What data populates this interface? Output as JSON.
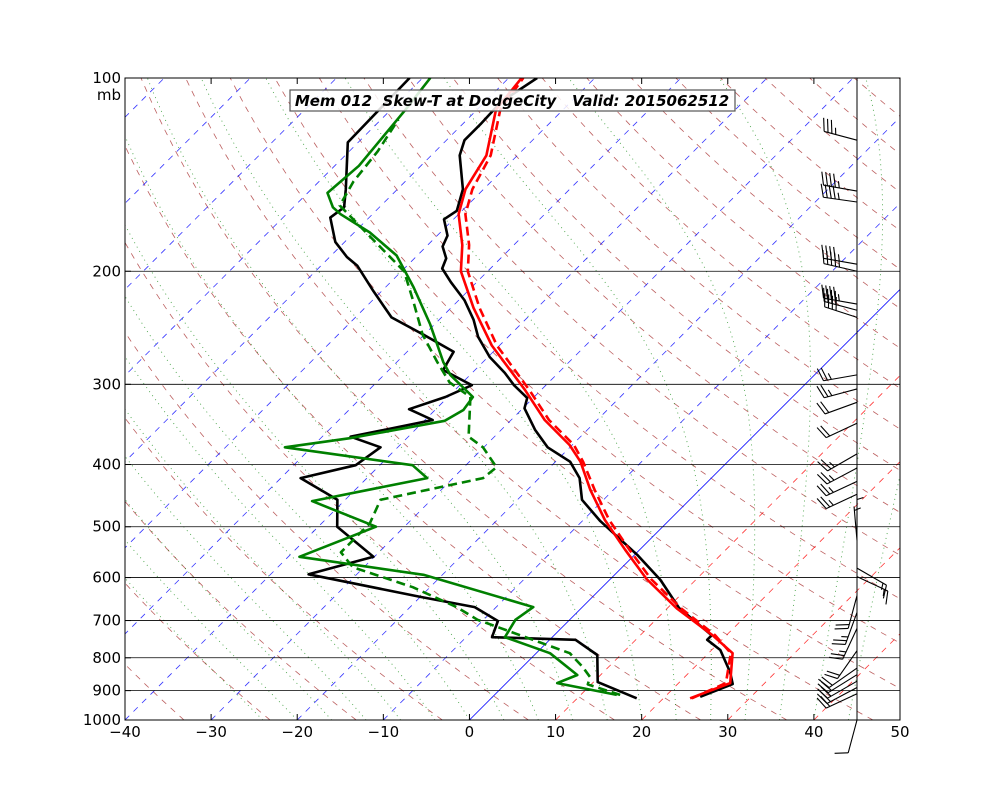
{
  "chart_data": {
    "type": "line",
    "subtype": "skew-t log-p",
    "title": "Mem 012  Skew-T at DodgeCity   Valid: 2015062512",
    "xlabel": "",
    "ylabel": "",
    "y_unit": "mb",
    "xlim": [
      -40,
      50
    ],
    "ylim": [
      1000,
      100
    ],
    "x_ticks": [
      "−40",
      "−30",
      "−20",
      "−10",
      "0",
      "10",
      "20",
      "30",
      "40",
      "50"
    ],
    "x_tick_values": [
      -40,
      -30,
      -20,
      -10,
      0,
      10,
      20,
      30,
      40,
      50
    ],
    "y_ticks": [
      "100",
      "200",
      "300",
      "400",
      "500",
      "600",
      "700",
      "800",
      "900",
      "1000"
    ],
    "y_tick_values": [
      100,
      200,
      300,
      400,
      500,
      600,
      700,
      800,
      900,
      1000
    ],
    "grid": {
      "isobars": true,
      "isotherm_step": 10,
      "dry_adiabats": true,
      "moist_adiabats": true
    },
    "colors": {
      "isotherm_neg": "#0000ff",
      "isotherm_pos": "#ff0000",
      "isotherm_zero": "#0000ff",
      "dry_adiabat": "#a52a2a",
      "moist_adiabat": "#008000"
    },
    "series": [
      {
        "color": "#000000",
        "dashed": false,
        "points": [
          [
            920,
            24.1
          ],
          [
            879,
            26.4
          ],
          [
            842,
            24.7
          ],
          [
            778,
            21.0
          ],
          [
            750,
            18.3
          ],
          [
            738,
            18.3
          ],
          [
            670,
            11.4
          ],
          [
            605,
            5.9
          ],
          [
            553,
            0.3
          ],
          [
            490,
            -7.9
          ],
          [
            454,
            -12.5
          ],
          [
            420,
            -15.3
          ],
          [
            396,
            -18.3
          ],
          [
            376,
            -22.6
          ],
          [
            353,
            -26.1
          ],
          [
            327,
            -29.8
          ],
          [
            315,
            -30.7
          ],
          [
            301,
            -33.7
          ],
          [
            288,
            -36.2
          ],
          [
            272,
            -39.8
          ],
          [
            253,
            -43.5
          ],
          [
            238,
            -46.0
          ],
          [
            222,
            -49.3
          ],
          [
            208,
            -53.0
          ],
          [
            198,
            -55.6
          ],
          [
            191,
            -56.3
          ],
          [
            183,
            -58.1
          ],
          [
            176,
            -58.8
          ],
          [
            166,
            -61.1
          ],
          [
            161,
            -60.6
          ],
          [
            149,
            -62.4
          ],
          [
            132,
            -66.7
          ],
          [
            125,
            -67.9
          ],
          [
            118,
            -67.9
          ],
          [
            109,
            -68.1
          ],
          [
            100,
            -66.7
          ]
        ]
      },
      {
        "color": "#ff0000",
        "dashed": false,
        "points": [
          [
            925,
            23.1
          ],
          [
            876,
            26.0
          ],
          [
            787,
            22.8
          ],
          [
            738,
            18.4
          ],
          [
            670,
            11.1
          ],
          [
            603,
            4.2
          ],
          [
            543,
            -1.7
          ],
          [
            488,
            -7.5
          ],
          [
            438,
            -12.7
          ],
          [
            396,
            -17.1
          ],
          [
            373,
            -20.3
          ],
          [
            341,
            -26.1
          ],
          [
            306,
            -31.9
          ],
          [
            261,
            -40.9
          ],
          [
            228,
            -47.4
          ],
          [
            200,
            -53.1
          ],
          [
            182,
            -56.0
          ],
          [
            163,
            -60.0
          ],
          [
            149,
            -62.1
          ],
          [
            132,
            -63.6
          ],
          [
            112,
            -67.8
          ],
          [
            100,
            -68.5
          ]
        ]
      },
      {
        "color": "#ff0000",
        "dashed": true,
        "points": [
          [
            925,
            23.3
          ],
          [
            876,
            25.5
          ],
          [
            787,
            22.6
          ],
          [
            738,
            18.7
          ],
          [
            670,
            11.6
          ],
          [
            603,
            4.7
          ],
          [
            543,
            -1.2
          ],
          [
            488,
            -7.0
          ],
          [
            438,
            -12.2
          ],
          [
            396,
            -16.8
          ],
          [
            373,
            -19.8
          ],
          [
            341,
            -25.6
          ],
          [
            306,
            -31.4
          ],
          [
            261,
            -40.3
          ],
          [
            228,
            -46.7
          ],
          [
            200,
            -52.3
          ],
          [
            182,
            -55.2
          ],
          [
            163,
            -59.2
          ],
          [
            149,
            -61.3
          ],
          [
            132,
            -63.1
          ],
          [
            112,
            -67.3
          ],
          [
            100,
            -68.3
          ]
        ]
      },
      {
        "color": "#000000",
        "dashed": false,
        "points": [
          [
            925,
            16.9
          ],
          [
            873,
            10.5
          ],
          [
            792,
            7.3
          ],
          [
            750,
            3.0
          ],
          [
            743,
            -7.0
          ],
          [
            701,
            -8.2
          ],
          [
            667,
            -12.5
          ],
          [
            643,
            -20.0
          ],
          [
            593,
            -35.6
          ],
          [
            557,
            -30.1
          ],
          [
            500,
            -37.8
          ],
          [
            454,
            -40.9
          ],
          [
            420,
            -47.7
          ],
          [
            401,
            -42.8
          ],
          [
            376,
            -42.0
          ],
          [
            362,
            -46.7
          ],
          [
            341,
            -39.1
          ],
          [
            328,
            -43.1
          ],
          [
            314,
            -40.3
          ],
          [
            301,
            -38.6
          ],
          [
            285,
            -43.7
          ],
          [
            267,
            -44.6
          ],
          [
            251,
            -50.1
          ],
          [
            236,
            -55.8
          ],
          [
            215,
            -60.9
          ],
          [
            196,
            -65.8
          ],
          [
            190,
            -68.0
          ],
          [
            180,
            -71.1
          ],
          [
            165,
            -74.5
          ],
          [
            159,
            -74.1
          ],
          [
            149,
            -76.0
          ],
          [
            126,
            -81.2
          ],
          [
            100,
            -81.5
          ]
        ]
      },
      {
        "color": "#008000",
        "dashed": false,
        "points": [
          [
            914,
            14.2
          ],
          [
            876,
            5.9
          ],
          [
            851,
            7.3
          ],
          [
            787,
            1.6
          ],
          [
            743,
            -5.5
          ],
          [
            698,
            -6.3
          ],
          [
            667,
            -5.7
          ],
          [
            594,
            -22.2
          ],
          [
            557,
            -38.7
          ],
          [
            500,
            -33.3
          ],
          [
            456,
            -43.7
          ],
          [
            420,
            -33.0
          ],
          [
            401,
            -36.2
          ],
          [
            376,
            -53.1
          ],
          [
            364,
            -46.6
          ],
          [
            342,
            -37.6
          ],
          [
            329,
            -36.7
          ],
          [
            314,
            -37.1
          ],
          [
            290,
            -42.3
          ],
          [
            277,
            -44.6
          ],
          [
            242,
            -50.5
          ],
          [
            212,
            -56.7
          ],
          [
            189,
            -62.4
          ],
          [
            174,
            -68.2
          ],
          [
            163,
            -73.7
          ],
          [
            159,
            -75.4
          ],
          [
            151,
            -77.7
          ],
          [
            137,
            -77.2
          ],
          [
            112,
            -78.3
          ],
          [
            100,
            -79.1
          ]
        ]
      },
      {
        "color": "#008000",
        "dashed": true,
        "points": [
          [
            914,
            14.6
          ],
          [
            880,
            9.6
          ],
          [
            857,
            9.0
          ],
          [
            827,
            7.0
          ],
          [
            787,
            3.9
          ],
          [
            698,
            -10.7
          ],
          [
            667,
            -14.6
          ],
          [
            621,
            -22.0
          ],
          [
            578,
            -31.3
          ],
          [
            548,
            -34.4
          ],
          [
            494,
            -34.4
          ],
          [
            454,
            -35.9
          ],
          [
            420,
            -26.5
          ],
          [
            404,
            -26.2
          ],
          [
            376,
            -30.1
          ],
          [
            362,
            -33.0
          ],
          [
            314,
            -37.4
          ],
          [
            298,
            -41.5
          ],
          [
            277,
            -45.3
          ],
          [
            251,
            -50.2
          ],
          [
            223,
            -55.1
          ],
          [
            200,
            -59.7
          ],
          [
            176,
            -67.9
          ],
          [
            158,
            -74.8
          ],
          [
            145,
            -76.0
          ],
          [
            130,
            -76.7
          ],
          [
            116,
            -78.0
          ]
        ]
      }
    ],
    "wind_barbs": [
      {
        "p": 125,
        "dir": 285,
        "kt": 35
      },
      {
        "p": 150,
        "dir": 280,
        "kt": 45
      },
      {
        "p": 156,
        "dir": 278,
        "kt": 45
      },
      {
        "p": 195,
        "dir": 280,
        "kt": 45
      },
      {
        "p": 200,
        "dir": 283,
        "kt": 45
      },
      {
        "p": 225,
        "dir": 280,
        "kt": 45
      },
      {
        "p": 230,
        "dir": 285,
        "kt": 40
      },
      {
        "p": 236,
        "dir": 288,
        "kt": 40
      },
      {
        "p": 290,
        "dir": 260,
        "kt": 25
      },
      {
        "p": 305,
        "dir": 255,
        "kt": 25
      },
      {
        "p": 320,
        "dir": 250,
        "kt": 20
      },
      {
        "p": 345,
        "dir": 245,
        "kt": 20
      },
      {
        "p": 385,
        "dir": 240,
        "kt": 25
      },
      {
        "p": 405,
        "dir": 242,
        "kt": 25
      },
      {
        "p": 425,
        "dir": 245,
        "kt": 25
      },
      {
        "p": 445,
        "dir": 245,
        "kt": 25
      },
      {
        "p": 505,
        "dir": 360,
        "kt": 5
      },
      {
        "p": 525,
        "dir": 355,
        "kt": 5
      },
      {
        "p": 580,
        "dir": 120,
        "kt": 15
      },
      {
        "p": 598,
        "dir": 115,
        "kt": 15
      },
      {
        "p": 640,
        "dir": 195,
        "kt": 20
      },
      {
        "p": 680,
        "dir": 200,
        "kt": 25
      },
      {
        "p": 720,
        "dir": 205,
        "kt": 25
      },
      {
        "p": 780,
        "dir": 215,
        "kt": 20
      },
      {
        "p": 830,
        "dir": 235,
        "kt": 20
      },
      {
        "p": 850,
        "dir": 238,
        "kt": 20
      },
      {
        "p": 870,
        "dir": 240,
        "kt": 20
      },
      {
        "p": 890,
        "dir": 242,
        "kt": 20
      },
      {
        "p": 910,
        "dir": 245,
        "kt": 20
      },
      {
        "p": 1000,
        "dir": 195,
        "kt": 10
      }
    ]
  }
}
